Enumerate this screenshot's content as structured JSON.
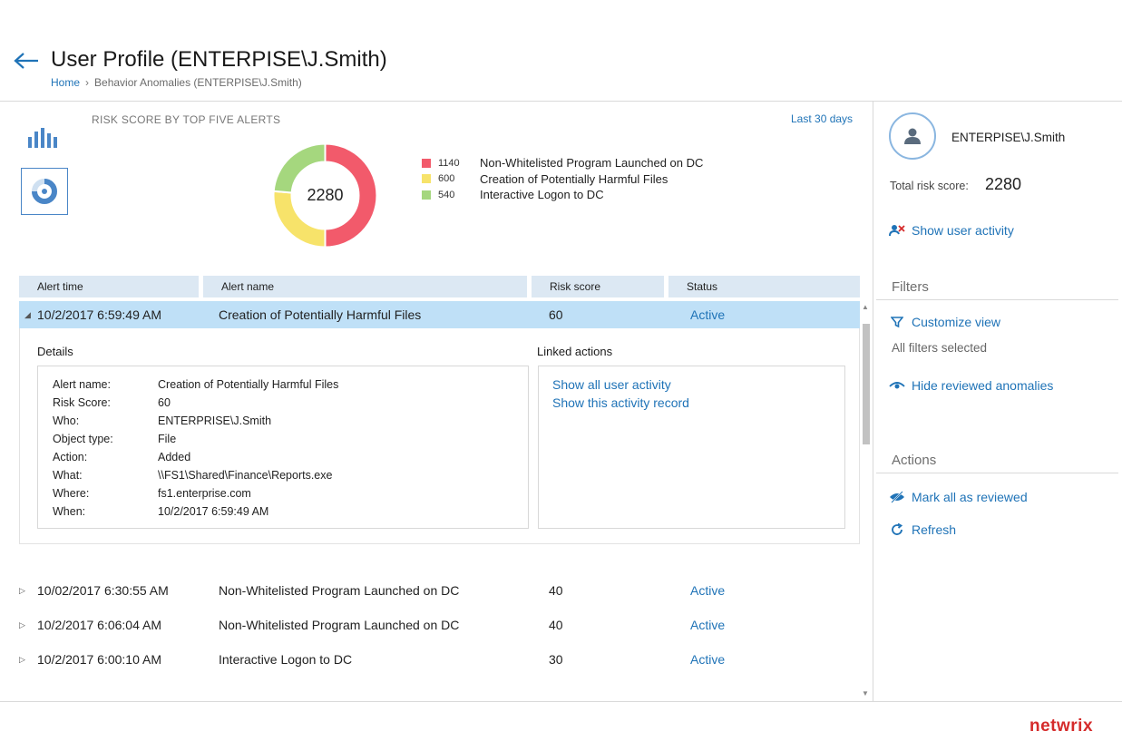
{
  "header": {
    "title": "User Profile (ENTERPISE\\J.Smith)",
    "breadcrumb": {
      "home": "Home",
      "current": "Behavior Anomalies (ENTERPISE\\J.Smith)"
    }
  },
  "chart_panel": {
    "title": "RISK SCORE BY TOP FIVE ALERTS",
    "time_range": "Last 30 days",
    "total": "2280"
  },
  "chart_data": {
    "type": "pie",
    "title": "RISK SCORE BY TOP FIVE ALERTS",
    "center_label": "2280",
    "categories": [
      "Non-Whitelisted Program Launched on DC",
      "Creation of Potentially Harmful Files",
      "Interactive Logon to DC"
    ],
    "values": [
      1140,
      600,
      540
    ],
    "colors": [
      "#f25a6b",
      "#f7e36a",
      "#a5d77e"
    ],
    "legend": "right"
  },
  "legend": [
    {
      "value": "1140",
      "label": "Non-Whitelisted Program Launched on DC",
      "color": "#f25a6b"
    },
    {
      "value": "600",
      "label": "Creation of Potentially Harmful Files",
      "color": "#f7e36a"
    },
    {
      "value": "540",
      "label": "Interactive Logon to DC",
      "color": "#a5d77e"
    }
  ],
  "table": {
    "headers": [
      "Alert time",
      "Alert name",
      "Risk score",
      "Status"
    ],
    "selected": {
      "time": "10/2/2017 6:59:49 AM",
      "name": "Creation of Potentially Harmful Files",
      "score": "60",
      "status": "Active"
    },
    "rows": [
      {
        "time": "10/02/2017 6:30:55 AM",
        "name": "Non-Whitelisted Program Launched on DC",
        "score": "40",
        "status": "Active"
      },
      {
        "time": "10/2/2017 6:06:04 AM",
        "name": "Non-Whitelisted Program Launched on DC",
        "score": "40",
        "status": "Active"
      },
      {
        "time": "10/2/2017 6:00:10 AM",
        "name": "Interactive Logon to DC",
        "score": "30",
        "status": "Active"
      }
    ]
  },
  "details": {
    "title": "Details",
    "fields": [
      {
        "key": "Alert name:",
        "value": "Creation of Potentially Harmful Files"
      },
      {
        "key": "Risk Score:",
        "value": "60"
      },
      {
        "key": "Who:",
        "value": "ENTERPRISE\\J.Smith"
      },
      {
        "key": "Object type:",
        "value": "File"
      },
      {
        "key": "Action:",
        "value": "Added"
      },
      {
        "key": "What:",
        "value": "\\\\FS1\\Shared\\Finance\\Reports.exe"
      },
      {
        "key": "Where:",
        "value": "fs1.enterprise.com"
      },
      {
        "key": "When:",
        "value": "10/2/2017 6:59:49 AM"
      }
    ]
  },
  "linked_actions": {
    "title": "Linked actions",
    "links": [
      "Show all user activity",
      "Show this activity record"
    ]
  },
  "sidebar": {
    "user_name": "ENTERPISE\\J.Smith",
    "risk_label": "Total risk score:",
    "risk_value": "2280",
    "show_activity": "Show user activity",
    "filters_heading": "Filters",
    "customize_view": "Customize view",
    "filters_state": "All filters selected",
    "hide_reviewed": "Hide reviewed anomalies",
    "actions_heading": "Actions",
    "mark_all": "Mark all as reviewed",
    "refresh": "Refresh"
  },
  "brand": "netwrix",
  "colors": {
    "accent": "#1f73b7",
    "selected_row": "#bfe0f7",
    "header_row": "#dce8f3",
    "brand": "#d52b2b"
  }
}
